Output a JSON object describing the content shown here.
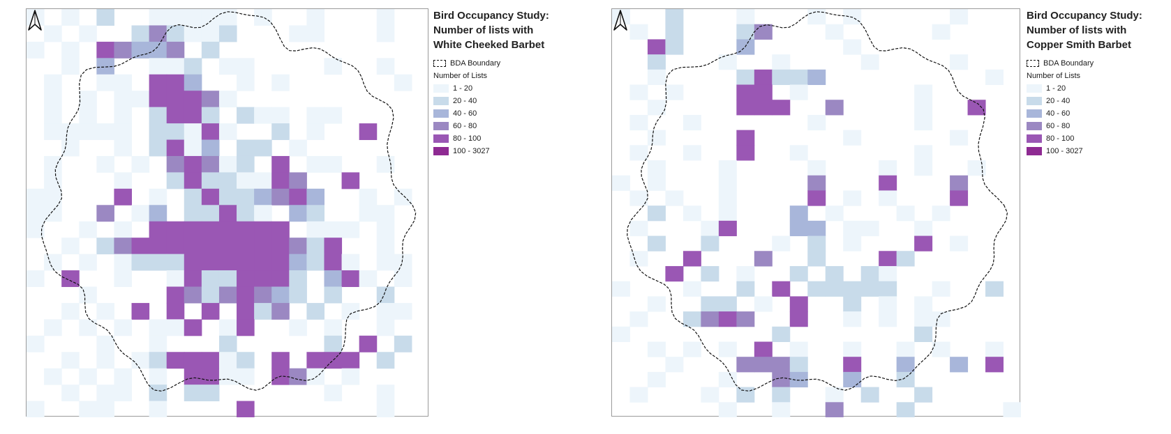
{
  "legend_title_prefix": "Bird Occupancy Study:",
  "legend_title_mid": "Number of lists with",
  "boundary_label": "BDA Boundary",
  "number_label": "Number of Lists",
  "classes": [
    {
      "label": "1 - 20",
      "color": "#edf5fb"
    },
    {
      "label": "20 - 40",
      "color": "#c8dbea"
    },
    {
      "label": "40 - 60",
      "color": "#a8b6da"
    },
    {
      "label": "60 - 80",
      "color": "#9b88c2"
    },
    {
      "label": "80 - 100",
      "color": "#9a57b4"
    },
    {
      "label": "100 - 3027",
      "color": "#8e2a92"
    }
  ],
  "maps": [
    {
      "species": "White Cheeked Barbet",
      "grid": [
        "1.1.2..11111.1..1...1..",
        ".1.1..242112...11...1..",
        "1.1.54334.2............",
        "..1.3..112.11....1..1..",
        ".1..11.553..1.1......1.",
        ".1.1.1155541...........",
        ".1.1.1.2552.211.11.....",
        ".11111.22151..2.1..5...",
        "..1..1.2513.22.1.......",
        ".1..1.1.45412.5.11..1..",
        ".1...1..25221154..5....",
        "11...5.1.25223453..1.1.",
        "11..4.13.22521.32..11..",
        "1..1.1.55555555.111.1..",
        "..1.24555555555425..1..",
        ".1.1.12225555553251.11.",
        "1.5..1..15225552.351.1.",
        "...1....54245432.2..2..",
        "..1.1.5.5.5.524.2.1.11.",
        ".1.1.1.115.15..1.1..1..",
        "1...1..1...2.....2.5.2.",
        "..1.1.1255512.5.555.2..",
        ".1.1.1.1.5511.541.1....",
        "..1.11.2.22......1..1..",
        "1..11..1....5.......1.."
      ]
    },
    {
      "species": "Copper Smith Barbet",
      "grid": [
        "1..2...1...1.1.....1...",
        ".1.2...24...1.....1....",
        "..52...3.....1.........",
        "..2...1..1....1....1...",
        "..1....25223.........1.",
        ".1.1...55.1......1.....",
        "..1....555..4....1..5..",
        ".1..1......1.....1.....",
        "..1....5.....1.....1...",
        ".1..1..5..1......1.....",
        "..1...1....1...1.1..1..",
        "1.1...1....4...5...4...",
        ".1.1..1....5.1.1...5...",
        "..2.1.1...3.1...1.1....",
        ".1...15...33.11..1.....",
        "..2..2...1.2.1...5.1...",
        ".1..5...4..2...52......",
        "...5.2.1..2.2.21.......",
        "1...1..2.5.22222..1..2.",
        "..1..22.1.5..2.1.1.....",
        ".1..2454..5..1.1.11....",
        "1........2.......2.....",
        "..1.1.1.5.1..1..1.1..1.",
        "...1...4442..5..3..3.5.",
        "..1...1..43..3..2......",
        ".1...1.2.2..1.2..2.....",
        "......1..1..4...2.....1"
      ]
    }
  ]
}
